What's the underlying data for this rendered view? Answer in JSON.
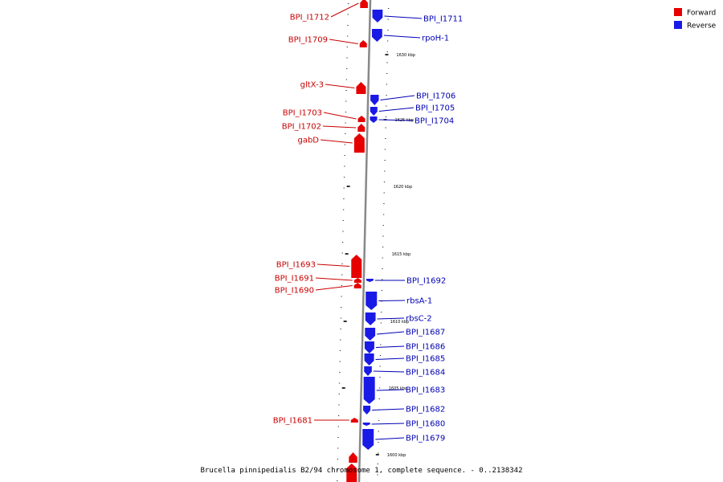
{
  "colors": {
    "forward": "#e60000",
    "reverse": "#1a1ae6",
    "forward_label": "#c80000",
    "reverse_label": "#0000b4",
    "backbone": "#888888"
  },
  "legend": {
    "forward_label": "Forward",
    "reverse_label": "Reverse"
  },
  "caption": "Brucella pinnipedialis B2/94 chromosome 1, complete sequence. - 0..2138342",
  "ticks": [
    {
      "label": "1600 kbp"
    },
    {
      "label": "1605 kbp"
    },
    {
      "label": "1610 kbp"
    },
    {
      "label": "1615 kbp"
    },
    {
      "label": "1620 kbp"
    },
    {
      "label": "1625 kbp"
    },
    {
      "label": "1630 kbp"
    }
  ],
  "forward_genes": [
    {
      "label": "BPI_I1712"
    },
    {
      "label": "BPI_I1709"
    },
    {
      "label": "gltX-3"
    },
    {
      "label": "BPI_I1703"
    },
    {
      "label": "BPI_I1702"
    },
    {
      "label": "gabD"
    },
    {
      "label": "BPI_I1693"
    },
    {
      "label": "BPI_I1691"
    },
    {
      "label": "BPI_I1690"
    },
    {
      "label": "BPI_I1681"
    },
    {
      "label": ""
    },
    {
      "label": ""
    }
  ],
  "reverse_genes": [
    {
      "label": "BPI_I1711"
    },
    {
      "label": "rpoH-1"
    },
    {
      "label": "BPI_I1706"
    },
    {
      "label": "BPI_I1705"
    },
    {
      "label": "BPI_I1704"
    },
    {
      "label": "BPI_I1692"
    },
    {
      "label": "rbsA-1"
    },
    {
      "label": "rbsC-2"
    },
    {
      "label": "BPI_I1687"
    },
    {
      "label": "BPI_I1686"
    },
    {
      "label": "BPI_I1685"
    },
    {
      "label": "BPI_I1684"
    },
    {
      "label": "BPI_I1683"
    },
    {
      "label": "BPI_I1682"
    },
    {
      "label": "BPI_I1680"
    },
    {
      "label": "BPI_I1679"
    }
  ]
}
